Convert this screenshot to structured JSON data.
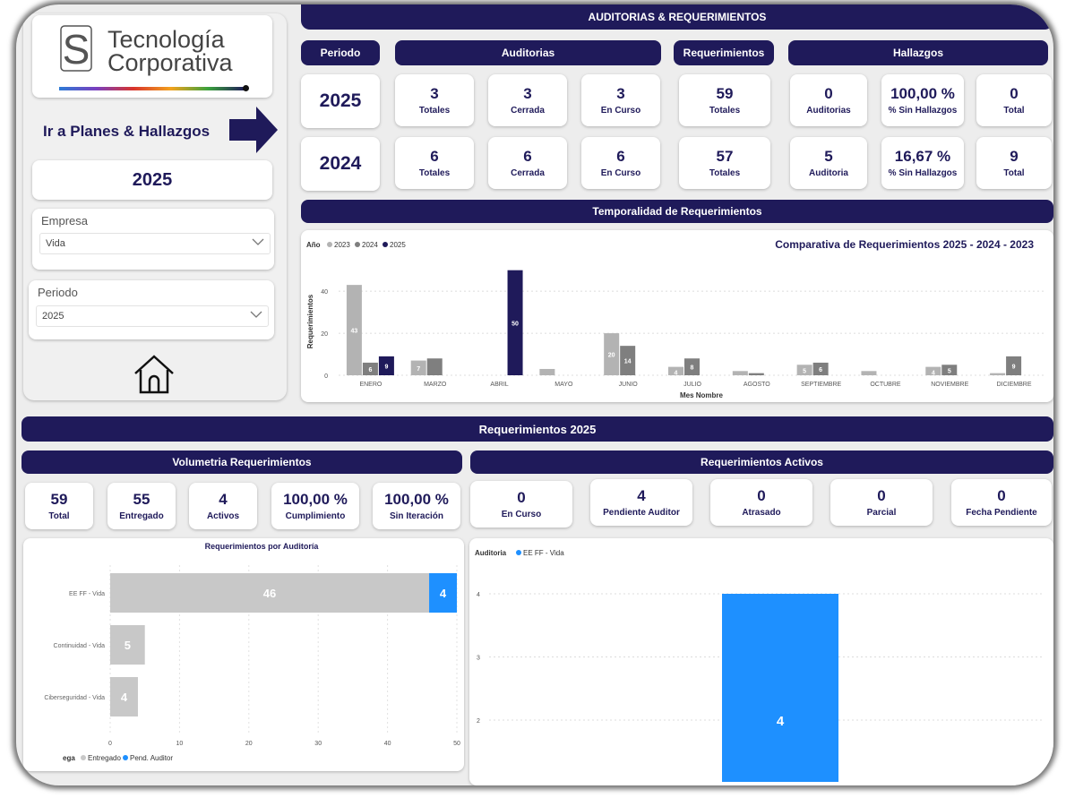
{
  "header": {
    "title": "AUDITORIAS & REQUERIMIENTOS"
  },
  "logo": {
    "line1": "Tecnología",
    "line2": "Corporativa"
  },
  "sidebar": {
    "nav_label": "Ir a Planes & Hallazgos",
    "year": "2025",
    "empresa_label": "Empresa",
    "empresa_value": "Vida",
    "periodo_label": "Periodo",
    "periodo_value": "2025"
  },
  "sections": {
    "periodo": "Periodo",
    "auditorias": "Auditorias",
    "requerimientos": "Requerimientos",
    "hallazgos": "Hallazgos",
    "temporalidad": "Temporalidad de Requerimientos",
    "req_2025": "Requerimientos 2025",
    "volumetria": "Volumetria Requerimientos",
    "activos": "Requerimientos Activos"
  },
  "rows": [
    {
      "year": "2025",
      "tiles": [
        {
          "value": "3",
          "label": "Totales"
        },
        {
          "value": "3",
          "label": "Cerrada"
        },
        {
          "value": "3",
          "label": "En Curso"
        },
        {
          "value": "59",
          "label": "Totales"
        },
        {
          "value": "0",
          "label": "Auditorias"
        },
        {
          "value": "100,00 %",
          "label": "% Sin Hallazgos"
        },
        {
          "value": "0",
          "label": "Total"
        }
      ]
    },
    {
      "year": "2024",
      "tiles": [
        {
          "value": "6",
          "label": "Totales"
        },
        {
          "value": "6",
          "label": "Cerrada"
        },
        {
          "value": "6",
          "label": "En Curso"
        },
        {
          "value": "57",
          "label": "Totales"
        },
        {
          "value": "5",
          "label": "Auditoria"
        },
        {
          "value": "16,67 %",
          "label": "% Sin Hallazgos"
        },
        {
          "value": "9",
          "label": "Total"
        }
      ]
    }
  ],
  "volumetria": [
    {
      "value": "59",
      "label": "Total"
    },
    {
      "value": "55",
      "label": "Entregado"
    },
    {
      "value": "4",
      "label": "Activos"
    },
    {
      "value": "100,00 %",
      "label": "Cumplimiento"
    },
    {
      "value": "100,00 %",
      "label": "Sin Iteración"
    }
  ],
  "activos": [
    {
      "value": "0",
      "label": "En Curso"
    },
    {
      "value": "4",
      "label": "Pendiente Auditor"
    },
    {
      "value": "0",
      "label": "Atrasado"
    },
    {
      "value": "0",
      "label": "Parcial"
    },
    {
      "value": "0",
      "label": "Fecha Pendiente"
    }
  ],
  "colors": {
    "navy": "#1f1a5a",
    "c2023": "#b3b3b3",
    "c2024": "#7f7f7f",
    "c2025": "#1f1a5a",
    "entregado": "#c8c8c8",
    "pend": "#1e90ff"
  },
  "chart_data": [
    {
      "type": "bar",
      "title": "Comparativa de Requerimientos 2025 - 2024 - 2023",
      "legend_title": "Año",
      "xlabel": "Mes Nombre",
      "ylabel": "Requerimientos",
      "ylim": [
        0,
        50
      ],
      "yticks": [
        0,
        20,
        40
      ],
      "categories": [
        "ENERO",
        "MARZO",
        "ABRIL",
        "MAYO",
        "JUNIO",
        "JULIO",
        "AGOSTO",
        "SEPTIEMBRE",
        "OCTUBRE",
        "NOVIEMBRE",
        "DICIEMBRE"
      ],
      "series": [
        {
          "name": "2023",
          "values": [
            43,
            7,
            null,
            3,
            20,
            4,
            2,
            5,
            2,
            4,
            1
          ],
          "labels": [
            "43",
            "7",
            "",
            "",
            "20",
            "4",
            "",
            "5",
            "",
            "4",
            ""
          ]
        },
        {
          "name": "2024",
          "values": [
            6,
            8,
            null,
            null,
            14,
            8,
            1,
            6,
            null,
            5,
            9
          ],
          "labels": [
            "6",
            "",
            "",
            "",
            "14",
            "8",
            "",
            "6",
            "",
            "5",
            "9"
          ]
        },
        {
          "name": "2025",
          "values": [
            9,
            null,
            50,
            null,
            null,
            null,
            null,
            null,
            null,
            null,
            null
          ],
          "labels": [
            "9",
            "",
            "50",
            "",
            "",
            "",
            "",
            "",
            "",
            "",
            ""
          ]
        }
      ],
      "grid": true,
      "legend": "top-left"
    },
    {
      "type": "bar",
      "orientation": "horizontal",
      "stacked": true,
      "title": "Requerimientos por Auditoría",
      "categories": [
        "EE FF - Vida",
        "Continuidad - Vida",
        "Ciberseguridad - Vida"
      ],
      "series": [
        {
          "name": "Entregado",
          "values": [
            46,
            5,
            4
          ]
        },
        {
          "name": "Pend. Auditor",
          "values": [
            4,
            0,
            0
          ]
        }
      ],
      "xlim": [
        0,
        50
      ],
      "xticks": [
        0,
        10,
        20,
        30,
        40,
        50
      ],
      "legend_title_visible": "ega",
      "legend": "bottom-left"
    },
    {
      "type": "bar",
      "title": "",
      "legend_title": "Auditoria",
      "series": [
        {
          "name": "EE FF - Vida",
          "values": [
            4
          ]
        }
      ],
      "yticks": [
        2,
        3,
        4
      ],
      "ylim": [
        1,
        4
      ],
      "grid": true,
      "legend": "top-left"
    }
  ]
}
